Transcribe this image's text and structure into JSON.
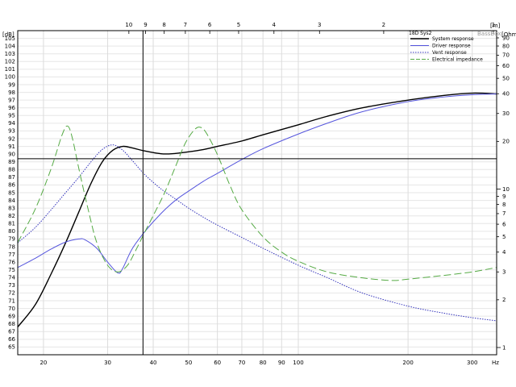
{
  "chart_data": {
    "type": "line",
    "title": "",
    "y_unit_label": "[dB]",
    "y2_unit_label": "[Ohm]",
    "x_unit_label": "Hz",
    "top_unit_label": "[m]",
    "watermark": "BassBox",
    "xlim": [
      17,
      350
    ],
    "ylim": [
      64,
      106
    ],
    "y2lim": [
      0.9,
      100
    ],
    "x_scale": "log",
    "y2_scale": "log",
    "x_ticks": [
      20,
      30,
      40,
      50,
      60,
      70,
      80,
      90,
      100,
      200,
      300
    ],
    "y_ticks": [
      65,
      66,
      67,
      68,
      69,
      70,
      71,
      72,
      73,
      74,
      75,
      76,
      77,
      78,
      79,
      80,
      81,
      82,
      83,
      84,
      85,
      86,
      87,
      88,
      89,
      90,
      91,
      92,
      93,
      94,
      95,
      96,
      97,
      98,
      99,
      100,
      101,
      102,
      103,
      104,
      105
    ],
    "y2_ticks": [
      1,
      2,
      3,
      4,
      5,
      6,
      7,
      8,
      9,
      10,
      20,
      30,
      40,
      50,
      60,
      70,
      80,
      90
    ],
    "top_ticks": [
      1,
      2,
      3,
      4,
      5,
      6,
      7,
      8,
      9,
      10
    ],
    "cursor": {
      "x": 37.5,
      "y": 89.4
    },
    "legend": {
      "position": "top-right",
      "title": "18D Sys2",
      "entries": [
        {
          "name": "System response",
          "color": "#000000",
          "dash": "solid"
        },
        {
          "name": "Driver response",
          "color": "#5555dd",
          "dash": "solid"
        },
        {
          "name": "Vent response",
          "color": "#3333bb",
          "dash": "dotted"
        },
        {
          "name": "Electrical impedance",
          "color": "#55aa44",
          "dash": "dashed"
        }
      ]
    },
    "series": [
      {
        "name": "System response",
        "axis": "y",
        "color": "#000000",
        "dash": "solid",
        "width": 1.4,
        "points": [
          [
            17,
            67.6
          ],
          [
            19,
            70.5
          ],
          [
            21,
            74.5
          ],
          [
            23,
            78.5
          ],
          [
            25,
            82.5
          ],
          [
            27,
            86.2
          ],
          [
            29,
            89.0
          ],
          [
            31,
            90.5
          ],
          [
            33,
            91.0
          ],
          [
            35,
            90.8
          ],
          [
            38,
            90.4
          ],
          [
            42,
            90.05
          ],
          [
            45,
            90.05
          ],
          [
            50,
            90.3
          ],
          [
            55,
            90.6
          ],
          [
            60,
            91.0
          ],
          [
            70,
            91.7
          ],
          [
            80,
            92.5
          ],
          [
            100,
            93.8
          ],
          [
            120,
            94.9
          ],
          [
            150,
            96.0
          ],
          [
            200,
            97.0
          ],
          [
            250,
            97.6
          ],
          [
            300,
            97.9
          ],
          [
            350,
            97.8
          ]
        ]
      },
      {
        "name": "Driver response",
        "axis": "y",
        "color": "#5555dd",
        "dash": "solid",
        "width": 1,
        "points": [
          [
            17,
            75.3
          ],
          [
            19,
            76.5
          ],
          [
            21,
            77.7
          ],
          [
            23,
            78.6
          ],
          [
            25,
            79.0
          ],
          [
            26,
            78.9
          ],
          [
            28,
            77.8
          ],
          [
            30,
            76.0
          ],
          [
            32,
            74.6
          ],
          [
            33,
            75.2
          ],
          [
            35,
            77.7
          ],
          [
            38,
            80.0
          ],
          [
            42,
            82.3
          ],
          [
            46,
            84.0
          ],
          [
            50,
            85.2
          ],
          [
            55,
            86.5
          ],
          [
            60,
            87.5
          ],
          [
            70,
            89.3
          ],
          [
            80,
            90.7
          ],
          [
            100,
            92.6
          ],
          [
            120,
            94.0
          ],
          [
            150,
            95.5
          ],
          [
            200,
            96.8
          ],
          [
            250,
            97.4
          ],
          [
            300,
            97.7
          ],
          [
            350,
            97.8
          ]
        ]
      },
      {
        "name": "Vent response",
        "axis": "y",
        "color": "#3333bb",
        "dash": "dotted",
        "width": 1,
        "points": [
          [
            17,
            78.5
          ],
          [
            19,
            80.5
          ],
          [
            21,
            82.8
          ],
          [
            23,
            85.0
          ],
          [
            25,
            87.0
          ],
          [
            27,
            89.0
          ],
          [
            29,
            90.6
          ],
          [
            31,
            91.2
          ],
          [
            33,
            90.5
          ],
          [
            35,
            89.2
          ],
          [
            38,
            87.3
          ],
          [
            42,
            85.5
          ],
          [
            46,
            84.2
          ],
          [
            50,
            83.0
          ],
          [
            55,
            81.8
          ],
          [
            60,
            80.8
          ],
          [
            70,
            79.2
          ],
          [
            80,
            77.8
          ],
          [
            100,
            75.6
          ],
          [
            120,
            74.0
          ],
          [
            150,
            72.0
          ],
          [
            200,
            70.3
          ],
          [
            250,
            69.4
          ],
          [
            300,
            68.8
          ],
          [
            350,
            68.4
          ]
        ]
      },
      {
        "name": "Electrical impedance",
        "axis": "y2",
        "color": "#55aa44",
        "dash": "dashed",
        "width": 1,
        "points": [
          [
            17,
            4.6
          ],
          [
            19,
            7.5
          ],
          [
            21,
            13.5
          ],
          [
            22.5,
            22
          ],
          [
            23.3,
            25
          ],
          [
            24,
            21
          ],
          [
            25,
            13.5
          ],
          [
            26.5,
            7.5
          ],
          [
            28,
            4.6
          ],
          [
            30,
            3.3
          ],
          [
            32,
            3.0
          ],
          [
            34,
            3.3
          ],
          [
            36,
            4.2
          ],
          [
            38,
            5.4
          ],
          [
            40,
            6.8
          ],
          [
            43,
            9.5
          ],
          [
            46,
            13.8
          ],
          [
            49,
            19.5
          ],
          [
            52,
            23.8
          ],
          [
            54,
            24.5
          ],
          [
            56,
            22.5
          ],
          [
            60,
            16.5
          ],
          [
            65,
            10.5
          ],
          [
            70,
            7.4
          ],
          [
            80,
            5.0
          ],
          [
            90,
            4.0
          ],
          [
            100,
            3.5
          ],
          [
            120,
            3.0
          ],
          [
            150,
            2.75
          ],
          [
            180,
            2.65
          ],
          [
            200,
            2.7
          ],
          [
            250,
            2.85
          ],
          [
            300,
            3.0
          ],
          [
            350,
            3.2
          ]
        ]
      }
    ]
  }
}
